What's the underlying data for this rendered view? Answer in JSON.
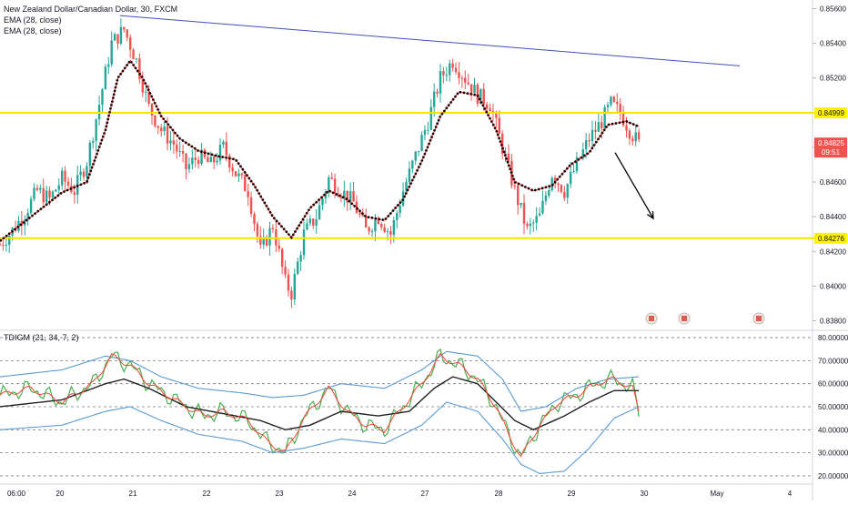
{
  "legend": {
    "title": "New Zealand Dollar/Canadian Dollar, 30, FXCM",
    "ema1": "EMA (28, close)",
    "ema2": "EMA (28, close)"
  },
  "oscillator_legend": "TDIGM (21, 34, 7, 2)",
  "price_axis": {
    "ticks": [
      "0.85600",
      "0.85400",
      "0.85200",
      "0.84800",
      "0.84600",
      "0.84400",
      "0.84200",
      "0.84000",
      "0.83800"
    ],
    "labels": {
      "resistance": "0.84999",
      "current": "0.84825",
      "countdown": "09:51",
      "support": "0.84276"
    }
  },
  "osc_axis": {
    "ticks": [
      "80.00000",
      "70.00000",
      "60.00000",
      "50.00000",
      "40.00000",
      "30.00000",
      "20.00000"
    ]
  },
  "time_axis": {
    "labels": [
      "06:00",
      "20",
      "21",
      "22",
      "23",
      "24",
      "27",
      "28",
      "29",
      "30",
      "May",
      "4"
    ]
  },
  "colors": {
    "up": "#26a69a",
    "down": "#ef5350",
    "ema": "#000000",
    "ema_inner": "#e53935",
    "trendline": "#3f51b5",
    "level": "#f5e400",
    "osc_green": "#4caf50",
    "osc_red": "#f44336",
    "osc_band": "#5b9bd5",
    "osc_mid": "#212121"
  },
  "chart_data": [
    {
      "type": "candlestick",
      "title": "New Zealand Dollar/Canadian Dollar, 30, FXCM",
      "ylim": [
        0.8375,
        0.8565
      ],
      "levels": {
        "resistance": 0.84999,
        "support": 0.84276,
        "last": 0.84825
      },
      "trendline": {
        "start": [
          "20",
          0.8556
        ],
        "end": [
          "May",
          0.8527
        ]
      },
      "arrow": {
        "direction": "down",
        "from": 0.8477,
        "to": 0.8439
      },
      "close_path": [
        [
          0,
          0.8424
        ],
        [
          4,
          0.8432
        ],
        [
          8,
          0.8442
        ],
        [
          12,
          0.8455
        ],
        [
          16,
          0.845
        ],
        [
          20,
          0.8462
        ],
        [
          24,
          0.8455
        ],
        [
          28,
          0.8472
        ],
        [
          32,
          0.8505
        ],
        [
          36,
          0.854
        ],
        [
          40,
          0.8548
        ],
        [
          44,
          0.853
        ],
        [
          48,
          0.8503
        ],
        [
          52,
          0.849
        ],
        [
          56,
          0.8482
        ],
        [
          60,
          0.8468
        ],
        [
          64,
          0.8475
        ],
        [
          68,
          0.847
        ],
        [
          72,
          0.848
        ],
        [
          76,
          0.8465
        ],
        [
          80,
          0.8455
        ],
        [
          84,
          0.842
        ],
        [
          88,
          0.8435
        ],
        [
          92,
          0.8402
        ],
        [
          94,
          0.8396
        ],
        [
          98,
          0.843
        ],
        [
          102,
          0.844
        ],
        [
          106,
          0.8462
        ],
        [
          110,
          0.8455
        ],
        [
          114,
          0.8448
        ],
        [
          118,
          0.8432
        ],
        [
          122,
          0.844
        ],
        [
          126,
          0.843
        ],
        [
          130,
          0.8455
        ],
        [
          134,
          0.8475
        ],
        [
          138,
          0.8495
        ],
        [
          142,
          0.852
        ],
        [
          146,
          0.853
        ],
        [
          150,
          0.852
        ],
        [
          154,
          0.851
        ],
        [
          158,
          0.8505
        ],
        [
          162,
          0.848
        ],
        [
          166,
          0.8455
        ],
        [
          170,
          0.8432
        ],
        [
          174,
          0.844
        ],
        [
          178,
          0.8465
        ],
        [
          182,
          0.8455
        ],
        [
          186,
          0.847
        ],
        [
          190,
          0.8485
        ],
        [
          194,
          0.8495
        ],
        [
          197,
          0.8505
        ],
        [
          200,
          0.85
        ],
        [
          203,
          0.849
        ],
        [
          206,
          0.8482
        ]
      ],
      "ema_path": [
        [
          0,
          0.8426
        ],
        [
          10,
          0.844
        ],
        [
          20,
          0.8454
        ],
        [
          28,
          0.846
        ],
        [
          34,
          0.849
        ],
        [
          38,
          0.852
        ],
        [
          42,
          0.853
        ],
        [
          46,
          0.852
        ],
        [
          52,
          0.8498
        ],
        [
          58,
          0.8485
        ],
        [
          64,
          0.8478
        ],
        [
          70,
          0.8475
        ],
        [
          76,
          0.8473
        ],
        [
          82,
          0.8458
        ],
        [
          88,
          0.844
        ],
        [
          94,
          0.8428
        ],
        [
          100,
          0.8445
        ],
        [
          106,
          0.8455
        ],
        [
          112,
          0.845
        ],
        [
          118,
          0.844
        ],
        [
          124,
          0.8438
        ],
        [
          130,
          0.845
        ],
        [
          136,
          0.8472
        ],
        [
          142,
          0.8498
        ],
        [
          148,
          0.8512
        ],
        [
          154,
          0.851
        ],
        [
          160,
          0.849
        ],
        [
          166,
          0.846
        ],
        [
          172,
          0.8455
        ],
        [
          178,
          0.8458
        ],
        [
          184,
          0.847
        ],
        [
          190,
          0.8477
        ],
        [
          196,
          0.8493
        ],
        [
          202,
          0.8495
        ],
        [
          206,
          0.8492
        ]
      ]
    },
    {
      "type": "line",
      "title": "TDIGM (21, 34, 7, 2)",
      "ylim": [
        18,
        82
      ],
      "levels": [
        80,
        70,
        60,
        50,
        40,
        30,
        20
      ],
      "series": [
        {
          "name": "",
          "values": [
            [
              0,
              55
            ],
            [
              10,
              58
            ],
            [
              20,
              52
            ],
            [
              30,
              60
            ],
            [
              36,
              72
            ],
            [
              42,
              68
            ],
            [
              48,
              60
            ],
            [
              54,
              55
            ],
            [
              60,
              50
            ],
            [
              66,
              46
            ],
            [
              72,
              48
            ],
            [
              80,
              44
            ],
            [
              86,
              35
            ],
            [
              92,
              30
            ],
            [
              98,
              45
            ],
            [
              106,
              58
            ],
            [
              112,
              48
            ],
            [
              118,
              42
            ],
            [
              124,
              40
            ],
            [
              130,
              50
            ],
            [
              136,
              60
            ],
            [
              142,
              72
            ],
            [
              148,
              68
            ],
            [
              154,
              62
            ],
            [
              160,
              50
            ],
            [
              164,
              38
            ],
            [
              168,
              28
            ],
            [
              174,
              42
            ],
            [
              180,
              52
            ],
            [
              186,
              55
            ],
            [
              192,
              60
            ],
            [
              198,
              62
            ],
            [
              204,
              58
            ],
            [
              206,
              48
            ]
          ]
        },
        {
          "name": "",
          "values": [
            [
              0,
              50
            ],
            [
              20,
              53
            ],
            [
              34,
              60
            ],
            [
              40,
              62
            ],
            [
              48,
              58
            ],
            [
              60,
              50
            ],
            [
              72,
              47
            ],
            [
              84,
              44
            ],
            [
              92,
              40
            ],
            [
              100,
              42
            ],
            [
              110,
              48
            ],
            [
              122,
              46
            ],
            [
              132,
              48
            ],
            [
              140,
              58
            ],
            [
              146,
              63
            ],
            [
              154,
              60
            ],
            [
              160,
              52
            ],
            [
              166,
              44
            ],
            [
              172,
              40
            ],
            [
              182,
              46
            ],
            [
              190,
              52
            ],
            [
              198,
              57
            ],
            [
              206,
              57
            ]
          ]
        },
        {
          "name": "",
          "values": [
            [
              0,
              63
            ],
            [
              20,
              66
            ],
            [
              34,
              72
            ],
            [
              42,
              70
            ],
            [
              52,
              63
            ],
            [
              64,
              58
            ],
            [
              78,
              56
            ],
            [
              88,
              54
            ],
            [
              98,
              55
            ],
            [
              110,
              60
            ],
            [
              124,
              58
            ],
            [
              136,
              66
            ],
            [
              144,
              74
            ],
            [
              154,
              72
            ],
            [
              162,
              62
            ],
            [
              168,
              48
            ],
            [
              176,
              50
            ],
            [
              186,
              58
            ],
            [
              196,
              62
            ],
            [
              206,
              63
            ]
          ]
        },
        {
          "name": "",
          "values": [
            [
              0,
              40
            ],
            [
              20,
              42
            ],
            [
              34,
              48
            ],
            [
              42,
              50
            ],
            [
              52,
              44
            ],
            [
              64,
              38
            ],
            [
              78,
              35
            ],
            [
              88,
              30
            ],
            [
              98,
              32
            ],
            [
              110,
              36
            ],
            [
              124,
              34
            ],
            [
              136,
              42
            ],
            [
              144,
              52
            ],
            [
              154,
              48
            ],
            [
              162,
              36
            ],
            [
              168,
              25
            ],
            [
              174,
              21
            ],
            [
              182,
              22
            ],
            [
              190,
              32
            ],
            [
              198,
              45
            ],
            [
              206,
              50
            ]
          ]
        }
      ]
    }
  ]
}
